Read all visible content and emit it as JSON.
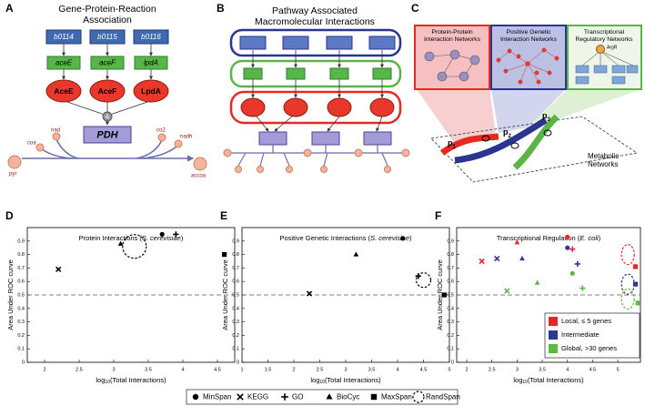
{
  "panels": {
    "A": {
      "label": "A",
      "title": [
        "Gene-Protein-Reaction",
        "Association"
      ],
      "genes": [
        "b0114",
        "b0115",
        "b0116"
      ],
      "transcripts": [
        "aceE",
        "aceF",
        "lpdA"
      ],
      "proteins": [
        "AceE",
        "AceF",
        "LpdA"
      ],
      "complex_op": "&",
      "complex": "PDH",
      "metabolites": [
        "nad",
        "coa",
        "co2",
        "nadh",
        "pyr",
        "accoa"
      ]
    },
    "B": {
      "label": "B",
      "title": [
        "Pathway Associated",
        "Macromolecular Interactions"
      ]
    },
    "C": {
      "label": "C",
      "networks": [
        [
          "Protein-Protein",
          "Interaction Networks"
        ],
        [
          "Positive Genetic",
          "Interaction Networks"
        ],
        [
          "Transcriptional",
          "Regulatory Networks"
        ]
      ],
      "regulator": "ArgR",
      "paths": [
        [
          "p",
          "1"
        ],
        [
          "p",
          "2"
        ],
        [
          "p",
          "3"
        ]
      ],
      "metabolic": [
        "Metabolic",
        "Networks"
      ]
    }
  },
  "marker_legend": [
    {
      "label": "MinSpan",
      "marker": "circle"
    },
    {
      "label": "KEGG",
      "marker": "x"
    },
    {
      "label": "GO",
      "marker": "plus"
    },
    {
      "label": "BioCyc",
      "marker": "triangle"
    },
    {
      "label": "MaxSpan",
      "marker": "square"
    },
    {
      "label": "RandSpan",
      "marker": "rand"
    }
  ],
  "chart_data": [
    {
      "type": "scatter",
      "label": "D",
      "title": [
        "Protein Interactions (",
        "S. cerevisiae",
        ")"
      ],
      "xlabel": [
        "log",
        "10",
        "(Total Interactions)"
      ],
      "ylabel": "Area Under ROC curve",
      "xlim": [
        1.75,
        4.75
      ],
      "xticks": [
        2,
        2.5,
        3,
        3.5,
        4,
        4.5
      ],
      "ylim": [
        0,
        1
      ],
      "yticks": [
        0,
        0.1,
        0.2,
        0.3,
        0.4,
        0.5,
        0.6,
        0.7,
        0.8,
        0.9
      ],
      "hline": 0.5,
      "series": [
        {
          "color": "#000000",
          "markers": [
            "x",
            "triangle",
            "rand",
            "circle",
            "plus",
            "square"
          ],
          "x": [
            2.2,
            3.1,
            3.3,
            3.7,
            3.9,
            4.6
          ],
          "values": [
            0.69,
            0.88,
            0.86,
            0.95,
            0.95,
            0.8
          ]
        }
      ]
    },
    {
      "type": "scatter",
      "label": "E",
      "title": [
        "Positive Genetic Interactions (",
        "S. cerevisiae",
        ")"
      ],
      "xlabel": [
        "log",
        "10",
        "(Total Interactions)"
      ],
      "ylabel": "Area Under ROC curve",
      "xlim": [
        1,
        5
      ],
      "xticks": [
        1,
        1.5,
        2,
        2.5,
        3,
        3.5,
        4,
        4.5,
        5
      ],
      "ylim": [
        0,
        1
      ],
      "yticks": [
        0,
        0.1,
        0.2,
        0.3,
        0.4,
        0.5,
        0.6,
        0.7,
        0.8,
        0.9
      ],
      "hline": 0.5,
      "series": [
        {
          "color": "#000000",
          "markers": [
            "x",
            "triangle",
            "circle",
            "plus",
            "rand",
            "square"
          ],
          "x": [
            2.3,
            3.2,
            4.1,
            4.4,
            4.5,
            4.9
          ],
          "values": [
            0.51,
            0.8,
            0.92,
            0.64,
            0.61,
            0.5
          ]
        }
      ]
    },
    {
      "type": "scatter",
      "label": "F",
      "title": [
        "Transcriptional Regulation (",
        "E. coli",
        ")"
      ],
      "xlabel": [
        "log",
        "10",
        "(Total Interactions)"
      ],
      "ylabel": "Area Under ROC curve",
      "xlim": [
        1.8,
        5.45
      ],
      "xticks": [
        2,
        2.5,
        3,
        3.5,
        4,
        4.5,
        5
      ],
      "ylim": [
        0,
        1
      ],
      "yticks": [
        0,
        0.1,
        0.2,
        0.3,
        0.4,
        0.5,
        0.6,
        0.7,
        0.8,
        0.9
      ],
      "hline": 0.5,
      "legend": "lower right",
      "series": [
        {
          "name": "Local, ≤ 5 genes",
          "color": "#e8242b",
          "markers": [
            "x",
            "triangle",
            "circle",
            "plus",
            "rand",
            "square"
          ],
          "x": [
            2.3,
            3.0,
            4.0,
            4.1,
            5.2,
            5.35
          ],
          "values": [
            0.75,
            0.89,
            0.93,
            0.84,
            0.8,
            0.71
          ]
        },
        {
          "name": "Intermediate",
          "color": "#2b3990",
          "markers": [
            "x",
            "triangle",
            "circle",
            "plus",
            "rand",
            "square"
          ],
          "x": [
            2.6,
            3.1,
            4.0,
            4.2,
            5.2,
            5.35
          ],
          "values": [
            0.77,
            0.77,
            0.85,
            0.73,
            0.58,
            0.58
          ]
        },
        {
          "name": "Global, >30 genes",
          "color": "#5fb846",
          "markers": [
            "x",
            "triangle",
            "circle",
            "plus",
            "rand",
            "square"
          ],
          "x": [
            2.8,
            3.4,
            4.1,
            4.3,
            5.2,
            5.4
          ],
          "values": [
            0.53,
            0.59,
            0.66,
            0.55,
            0.47,
            0.44
          ]
        }
      ]
    }
  ]
}
